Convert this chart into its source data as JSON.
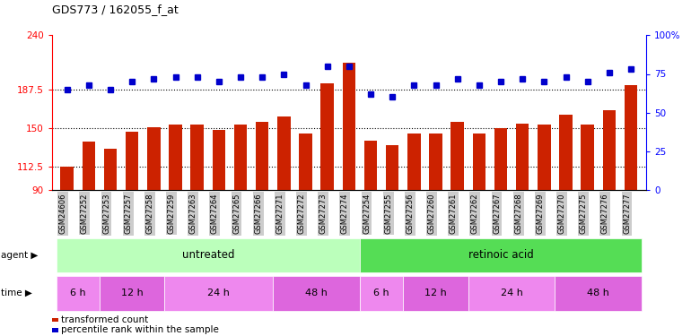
{
  "title": "GDS773 / 162055_f_at",
  "categories": [
    "GSM24606",
    "GSM27252",
    "GSM27253",
    "GSM27257",
    "GSM27258",
    "GSM27259",
    "GSM27263",
    "GSM27264",
    "GSM27265",
    "GSM27266",
    "GSM27271",
    "GSM27272",
    "GSM27273",
    "GSM27274",
    "GSM27254",
    "GSM27255",
    "GSM27256",
    "GSM27260",
    "GSM27261",
    "GSM27262",
    "GSM27267",
    "GSM27268",
    "GSM27269",
    "GSM27270",
    "GSM27275",
    "GSM27276",
    "GSM27277"
  ],
  "bar_values": [
    112.5,
    137,
    130,
    146,
    151,
    153,
    153,
    148,
    153,
    156,
    161,
    145,
    193,
    213,
    138,
    133,
    145,
    145,
    156,
    145,
    150,
    154,
    153,
    163,
    153,
    167,
    192
  ],
  "blue_values": [
    65,
    68,
    65,
    70,
    72,
    73,
    73,
    70,
    73,
    73,
    75,
    68,
    80,
    80,
    62,
    60,
    68,
    68,
    72,
    68,
    70,
    72,
    70,
    73,
    70,
    76,
    78
  ],
  "ymin": 90,
  "ymax": 240,
  "y2min": 0,
  "y2max": 100,
  "yticks": [
    90,
    112.5,
    150,
    187.5,
    240
  ],
  "ytick_labels": [
    "90",
    "112.5",
    "150",
    "187.5",
    "240"
  ],
  "y2ticks": [
    0,
    25,
    50,
    75,
    100
  ],
  "y2tick_labels": [
    "0",
    "25",
    "50",
    "75",
    "100%"
  ],
  "hlines": [
    112.5,
    150,
    187.5
  ],
  "bar_color": "#cc2200",
  "blue_color": "#0000cc",
  "agent_untreated_color": "#bbffbb",
  "agent_retinoic_color": "#55dd55",
  "time_color_light": "#ee88ee",
  "time_color_dark": "#dd66dd",
  "untreated_label": "untreated",
  "retinoic_label": "retinoic acid",
  "time_groups_untreated": [
    "6 h",
    "12 h",
    "24 h",
    "48 h"
  ],
  "time_groups_retinoic": [
    "6 h",
    "12 h",
    "24 h",
    "48 h"
  ],
  "untreated_count": 14,
  "retinoic_count": 13,
  "untreated_time_splits": [
    2,
    3,
    5,
    4
  ],
  "retinoic_time_splits": [
    2,
    3,
    4,
    4
  ],
  "legend_bar_label": "transformed count",
  "legend_dot_label": "percentile rank within the sample",
  "tick_label_bg": "#cccccc"
}
